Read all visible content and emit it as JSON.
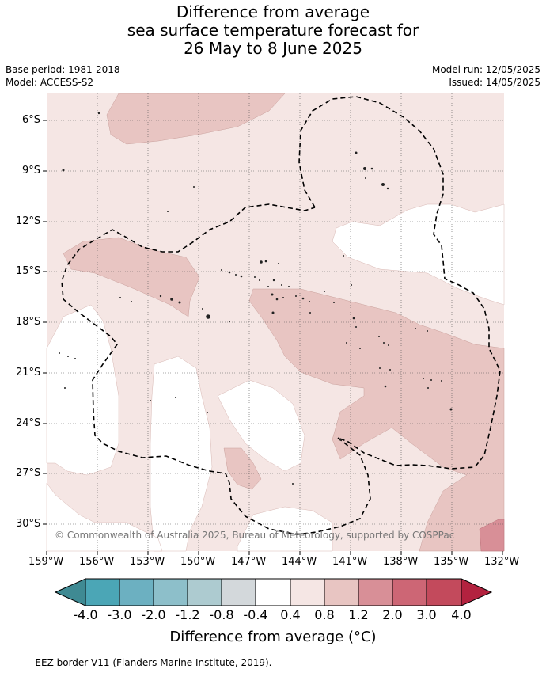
{
  "title": {
    "line1": "Difference from average",
    "line2": "sea surface temperature forecast for",
    "line3": "26 May to 8 June 2025"
  },
  "meta": {
    "base_period": "Base period: 1981-2018",
    "model": "Model: ACCESS-S2",
    "model_run": "Model run: 12/05/2025",
    "issued": "Issued: 14/05/2025"
  },
  "copyright": "© Commonwealth of Australia 2025, Bureau of Meteorology, supported by COSPPac",
  "lat_labels": [
    "6°S",
    "9°S",
    "12°S",
    "15°S",
    "18°S",
    "21°S",
    "24°S",
    "27°S",
    "30°S"
  ],
  "lon_labels": [
    "159°W",
    "156°W",
    "153°W",
    "150°W",
    "147°W",
    "144°W",
    "141°W",
    "138°W",
    "135°W",
    "132°W"
  ],
  "colorbar": {
    "title": "Difference from average (°C)",
    "ticks": [
      "-4.0",
      "-3.0",
      "-2.0",
      "-1.2",
      "-0.8",
      "-0.4",
      "0.4",
      "0.8",
      "1.2",
      "2.0",
      "3.0",
      "4.0"
    ],
    "colors": [
      "#3f8a93",
      "#4ba6b6",
      "#6cb0c1",
      "#8dbfca",
      "#adcbd0",
      "#d3d8db",
      "#ffffff",
      "#f5e6e4",
      "#e8c5c2",
      "#d88f97",
      "#cd6675",
      "#c34a5c",
      "#b3223f"
    ]
  },
  "footer": "--  --  -- EEZ border V11 (Flanders Marine Institute, 2019)."
}
